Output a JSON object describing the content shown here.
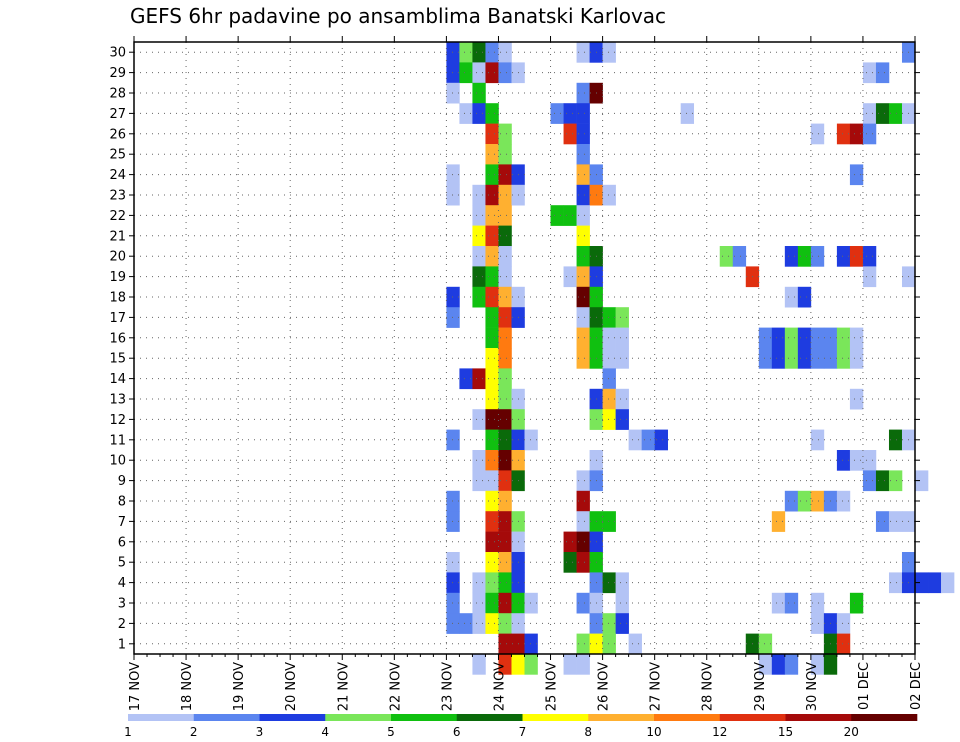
{
  "chart_data": {
    "type": "heatmap",
    "title": "GEFS 6hr padavine po ansamblima Banatski Karlovac",
    "x_tick_labels": [
      "17 NOV",
      "18 NOV",
      "19 NOV",
      "20 NOV",
      "21 NOV",
      "22 NOV",
      "23 NOV",
      "24 NOV",
      "25 NOV",
      "26 NOV",
      "27 NOV",
      "28 NOV",
      "29 NOV",
      "30 NOV",
      "01 DEC",
      "02 DEC"
    ],
    "y_tick_labels": [
      "1",
      "2",
      "3",
      "4",
      "5",
      "6",
      "7",
      "8",
      "9",
      "10",
      "11",
      "12",
      "13",
      "14",
      "15",
      "16",
      "17",
      "18",
      "19",
      "20",
      "21",
      "22",
      "23",
      "24",
      "25",
      "26",
      "27",
      "28",
      "29",
      "30"
    ],
    "xlim": [
      0,
      15
    ],
    "ylim": [
      0.5,
      30.5
    ],
    "grid": true,
    "steps_per_day": 4,
    "colorbar": {
      "levels": [
        "1",
        "2",
        "3",
        "4",
        "5",
        "6",
        "7",
        "8",
        "10",
        "12",
        "15",
        "20"
      ],
      "colors": [
        "#b3c3f5",
        "#5b85ef",
        "#1e3ce0",
        "#7ae65a",
        "#10c010",
        "#0a6a0a",
        "#ffff00",
        "#ffb030",
        "#ff7a10",
        "#e03010",
        "#a50a0a",
        "#650000"
      ],
      "placement": "bottom"
    },
    "cells": [
      [
        30,
        24,
        3
      ],
      [
        30,
        25,
        4
      ],
      [
        30,
        26,
        6
      ],
      [
        30,
        27,
        2
      ],
      [
        30,
        28,
        1
      ],
      [
        30,
        34,
        1
      ],
      [
        30,
        35,
        3
      ],
      [
        30,
        36,
        1
      ],
      [
        30,
        59,
        2
      ],
      [
        29,
        24,
        3
      ],
      [
        29,
        25,
        5
      ],
      [
        29,
        26,
        1
      ],
      [
        29,
        27,
        11
      ],
      [
        29,
        28,
        2
      ],
      [
        29,
        29,
        1
      ],
      [
        29,
        56,
        1
      ],
      [
        29,
        57,
        2
      ],
      [
        28,
        24,
        1
      ],
      [
        28,
        26,
        5
      ],
      [
        28,
        34,
        2
      ],
      [
        28,
        35,
        12
      ],
      [
        27,
        25,
        1
      ],
      [
        27,
        26,
        3
      ],
      [
        27,
        27,
        5
      ],
      [
        27,
        32,
        2
      ],
      [
        27,
        33,
        3
      ],
      [
        27,
        34,
        3
      ],
      [
        27,
        42,
        1
      ],
      [
        27,
        56,
        1
      ],
      [
        27,
        57,
        6
      ],
      [
        27,
        58,
        5
      ],
      [
        27,
        59,
        1
      ],
      [
        26,
        27,
        10
      ],
      [
        26,
        28,
        4
      ],
      [
        26,
        33,
        10
      ],
      [
        26,
        34,
        3
      ],
      [
        26,
        52,
        1
      ],
      [
        26,
        54,
        10
      ],
      [
        26,
        55,
        11
      ],
      [
        26,
        56,
        2
      ],
      [
        25,
        27,
        8
      ],
      [
        25,
        28,
        4
      ],
      [
        25,
        34,
        2
      ],
      [
        24,
        24,
        1
      ],
      [
        24,
        27,
        5
      ],
      [
        24,
        28,
        11
      ],
      [
        24,
        29,
        3
      ],
      [
        24,
        34,
        8
      ],
      [
        24,
        35,
        2
      ],
      [
        24,
        55,
        2
      ],
      [
        23,
        24,
        1
      ],
      [
        23,
        26,
        1
      ],
      [
        23,
        27,
        11
      ],
      [
        23,
        28,
        8
      ],
      [
        23,
        29,
        1
      ],
      [
        23,
        34,
        3
      ],
      [
        23,
        35,
        9
      ],
      [
        23,
        36,
        1
      ],
      [
        22,
        26,
        1
      ],
      [
        22,
        27,
        8
      ],
      [
        22,
        28,
        8
      ],
      [
        22,
        32,
        5
      ],
      [
        22,
        33,
        5
      ],
      [
        22,
        34,
        1
      ],
      [
        21,
        26,
        7
      ],
      [
        21,
        27,
        10
      ],
      [
        21,
        28,
        6
      ],
      [
        21,
        34,
        7
      ],
      [
        20,
        26,
        1
      ],
      [
        20,
        27,
        8
      ],
      [
        20,
        28,
        1
      ],
      [
        20,
        34,
        5
      ],
      [
        20,
        35,
        6
      ],
      [
        20,
        45,
        4
      ],
      [
        20,
        46,
        2
      ],
      [
        20,
        50,
        3
      ],
      [
        20,
        51,
        5
      ],
      [
        20,
        52,
        2
      ],
      [
        20,
        54,
        3
      ],
      [
        20,
        55,
        10
      ],
      [
        20,
        56,
        3
      ],
      [
        19,
        26,
        6
      ],
      [
        19,
        27,
        5
      ],
      [
        19,
        28,
        1
      ],
      [
        19,
        33,
        1
      ],
      [
        19,
        34,
        8
      ],
      [
        19,
        35,
        3
      ],
      [
        19,
        47,
        10
      ],
      [
        19,
        56,
        1
      ],
      [
        19,
        59,
        1
      ],
      [
        18,
        24,
        3
      ],
      [
        18,
        26,
        5
      ],
      [
        18,
        27,
        10
      ],
      [
        18,
        28,
        8
      ],
      [
        18,
        29,
        1
      ],
      [
        18,
        34,
        12
      ],
      [
        18,
        35,
        5
      ],
      [
        18,
        50,
        1
      ],
      [
        18,
        51,
        3
      ],
      [
        17,
        24,
        2
      ],
      [
        17,
        27,
        5
      ],
      [
        17,
        28,
        10
      ],
      [
        17,
        29,
        3
      ],
      [
        17,
        34,
        1
      ],
      [
        17,
        35,
        6
      ],
      [
        17,
        36,
        5
      ],
      [
        17,
        37,
        4
      ],
      [
        16,
        27,
        5
      ],
      [
        16,
        28,
        9
      ],
      [
        16,
        34,
        8
      ],
      [
        16,
        35,
        5
      ],
      [
        16,
        36,
        1
      ],
      [
        16,
        37,
        1
      ],
      [
        16,
        48,
        2
      ],
      [
        16,
        49,
        3
      ],
      [
        16,
        50,
        4
      ],
      [
        16,
        51,
        3
      ],
      [
        16,
        52,
        2
      ],
      [
        16,
        53,
        2
      ],
      [
        16,
        54,
        4
      ],
      [
        16,
        55,
        1
      ],
      [
        15,
        27,
        7
      ],
      [
        15,
        28,
        9
      ],
      [
        15,
        34,
        8
      ],
      [
        15,
        35,
        5
      ],
      [
        15,
        36,
        1
      ],
      [
        15,
        37,
        1
      ],
      [
        15,
        48,
        2
      ],
      [
        15,
        49,
        3
      ],
      [
        15,
        50,
        4
      ],
      [
        15,
        51,
        3
      ],
      [
        15,
        52,
        2
      ],
      [
        15,
        53,
        2
      ],
      [
        15,
        54,
        4
      ],
      [
        15,
        55,
        1
      ],
      [
        14,
        25,
        3
      ],
      [
        14,
        26,
        11
      ],
      [
        14,
        27,
        7
      ],
      [
        14,
        28,
        4
      ],
      [
        14,
        36,
        2
      ],
      [
        13,
        27,
        7
      ],
      [
        13,
        28,
        4
      ],
      [
        13,
        29,
        1
      ],
      [
        13,
        35,
        3
      ],
      [
        13,
        36,
        8
      ],
      [
        13,
        37,
        1
      ],
      [
        13,
        55,
        1
      ],
      [
        12,
        26,
        1
      ],
      [
        12,
        27,
        12
      ],
      [
        12,
        28,
        12
      ],
      [
        12,
        29,
        4
      ],
      [
        12,
        35,
        4
      ],
      [
        12,
        36,
        7
      ],
      [
        12,
        37,
        3
      ],
      [
        11,
        24,
        2
      ],
      [
        11,
        27,
        5
      ],
      [
        11,
        28,
        6
      ],
      [
        11,
        29,
        3
      ],
      [
        11,
        30,
        1
      ],
      [
        11,
        38,
        1
      ],
      [
        11,
        39,
        2
      ],
      [
        11,
        40,
        3
      ],
      [
        11,
        52,
        1
      ],
      [
        11,
        58,
        6
      ],
      [
        11,
        59,
        1
      ],
      [
        10,
        26,
        1
      ],
      [
        10,
        27,
        9
      ],
      [
        10,
        28,
        12
      ],
      [
        10,
        29,
        8
      ],
      [
        10,
        35,
        1
      ],
      [
        10,
        54,
        3
      ],
      [
        10,
        55,
        1
      ],
      [
        10,
        56,
        1
      ],
      [
        9,
        26,
        1
      ],
      [
        9,
        27,
        1
      ],
      [
        9,
        28,
        10
      ],
      [
        9,
        29,
        6
      ],
      [
        9,
        34,
        1
      ],
      [
        9,
        35,
        2
      ],
      [
        9,
        56,
        2
      ],
      [
        9,
        57,
        6
      ],
      [
        9,
        58,
        4
      ],
      [
        9,
        60,
        1
      ],
      [
        8,
        24,
        2
      ],
      [
        8,
        27,
        7
      ],
      [
        8,
        28,
        8
      ],
      [
        8,
        34,
        11
      ],
      [
        8,
        50,
        2
      ],
      [
        8,
        51,
        4
      ],
      [
        8,
        52,
        8
      ],
      [
        8,
        53,
        2
      ],
      [
        8,
        54,
        1
      ],
      [
        7,
        24,
        2
      ],
      [
        7,
        27,
        10
      ],
      [
        7,
        28,
        11
      ],
      [
        7,
        29,
        4
      ],
      [
        7,
        34,
        1
      ],
      [
        7,
        35,
        5
      ],
      [
        7,
        36,
        5
      ],
      [
        7,
        49,
        8
      ],
      [
        7,
        57,
        2
      ],
      [
        7,
        58,
        1
      ],
      [
        7,
        59,
        1
      ],
      [
        6,
        27,
        11
      ],
      [
        6,
        28,
        11
      ],
      [
        6,
        29,
        1
      ],
      [
        6,
        33,
        11
      ],
      [
        6,
        34,
        12
      ],
      [
        6,
        35,
        3
      ],
      [
        5,
        24,
        1
      ],
      [
        5,
        27,
        7
      ],
      [
        5,
        28,
        8
      ],
      [
        5,
        29,
        3
      ],
      [
        5,
        33,
        6
      ],
      [
        5,
        34,
        11
      ],
      [
        5,
        35,
        5
      ],
      [
        5,
        59,
        2
      ],
      [
        4,
        24,
        3
      ],
      [
        4,
        26,
        1
      ],
      [
        4,
        27,
        4
      ],
      [
        4,
        28,
        5
      ],
      [
        4,
        29,
        3
      ],
      [
        4,
        35,
        2
      ],
      [
        4,
        36,
        6
      ],
      [
        4,
        37,
        1
      ],
      [
        4,
        58,
        1
      ],
      [
        4,
        59,
        3
      ],
      [
        4,
        60,
        3
      ],
      [
        4,
        61,
        3
      ],
      [
        4,
        62,
        1
      ],
      [
        3,
        24,
        2
      ],
      [
        3,
        26,
        1
      ],
      [
        3,
        27,
        5
      ],
      [
        3,
        28,
        11
      ],
      [
        3,
        29,
        5
      ],
      [
        3,
        30,
        1
      ],
      [
        3,
        34,
        2
      ],
      [
        3,
        35,
        1
      ],
      [
        3,
        37,
        1
      ],
      [
        3,
        49,
        1
      ],
      [
        3,
        50,
        2
      ],
      [
        3,
        52,
        1
      ],
      [
        3,
        55,
        5
      ],
      [
        2,
        24,
        2
      ],
      [
        2,
        25,
        2
      ],
      [
        2,
        26,
        1
      ],
      [
        2,
        27,
        7
      ],
      [
        2,
        28,
        4
      ],
      [
        2,
        29,
        1
      ],
      [
        2,
        35,
        2
      ],
      [
        2,
        36,
        4
      ],
      [
        2,
        37,
        3
      ],
      [
        2,
        52,
        1
      ],
      [
        2,
        53,
        3
      ],
      [
        2,
        54,
        1
      ],
      [
        1,
        28,
        11
      ],
      [
        1,
        29,
        11
      ],
      [
        1,
        30,
        3
      ],
      [
        1,
        34,
        4
      ],
      [
        1,
        35,
        7
      ],
      [
        1,
        36,
        4
      ],
      [
        1,
        38,
        1
      ],
      [
        1,
        47,
        6
      ],
      [
        1,
        48,
        4
      ],
      [
        1,
        53,
        6
      ],
      [
        1,
        54,
        10
      ],
      [
        0,
        26,
        1
      ],
      [
        0,
        28,
        10
      ],
      [
        0,
        29,
        7
      ],
      [
        0,
        30,
        4
      ],
      [
        0,
        33,
        1
      ],
      [
        0,
        34,
        1
      ],
      [
        0,
        48,
        1
      ],
      [
        0,
        49,
        3
      ],
      [
        0,
        50,
        2
      ],
      [
        0,
        52,
        1
      ],
      [
        0,
        53,
        6
      ]
    ]
  }
}
